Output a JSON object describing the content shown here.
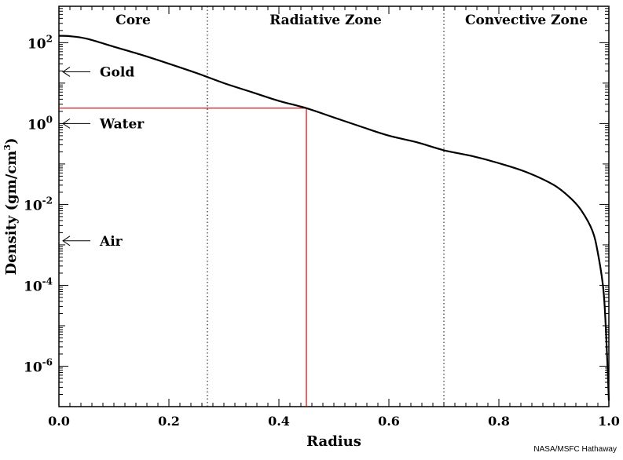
{
  "credit": "NASA/MSFC Hathaway",
  "chart_data": {
    "type": "line",
    "title": "",
    "xlabel": "Radius",
    "ylabel_parts": [
      "Density (gm/cm",
      "3",
      ")"
    ],
    "xlim": [
      0.0,
      1.0
    ],
    "ylim_log10": [
      -7.0,
      2.9
    ],
    "y_scale": "log",
    "x_ticks": [
      {
        "value": 0.0,
        "label": "0.0"
      },
      {
        "value": 0.2,
        "label": "0.2"
      },
      {
        "value": 0.4,
        "label": "0.4"
      },
      {
        "value": 0.6,
        "label": "0.6"
      },
      {
        "value": 0.8,
        "label": "0.8"
      },
      {
        "value": 1.0,
        "label": "1.0"
      }
    ],
    "y_ticks": [
      {
        "exp": 2,
        "base": "10",
        "power": "2"
      },
      {
        "exp": 0,
        "base": "10",
        "power": "0"
      },
      {
        "exp": -2,
        "base": "10",
        "power": "-2"
      },
      {
        "exp": -4,
        "base": "10",
        "power": "-4"
      },
      {
        "exp": -6,
        "base": "10",
        "power": "-6"
      }
    ],
    "zones": [
      {
        "name": "Core",
        "x_start": 0.0,
        "x_end": 0.27
      },
      {
        "name": "Radiative Zone",
        "x_start": 0.27,
        "x_end": 0.7
      },
      {
        "name": "Convective Zone",
        "x_start": 0.7,
        "x_end": 1.0
      }
    ],
    "zone_boundaries": [
      0.27,
      0.7
    ],
    "reference_markers": [
      {
        "label": "Gold",
        "log10_density": 1.28
      },
      {
        "label": "Water",
        "log10_density": 0.0
      },
      {
        "label": "Air",
        "log10_density": -2.9
      }
    ],
    "highlight_point": {
      "x": 0.45,
      "log10_y": 0.38
    },
    "series": [
      {
        "color": "#000000",
        "points": [
          [
            0.0,
            2.17
          ],
          [
            0.02,
            2.16
          ],
          [
            0.05,
            2.1
          ],
          [
            0.1,
            1.9
          ],
          [
            0.15,
            1.7
          ],
          [
            0.2,
            1.48
          ],
          [
            0.25,
            1.25
          ],
          [
            0.3,
            1.0
          ],
          [
            0.35,
            0.78
          ],
          [
            0.4,
            0.56
          ],
          [
            0.45,
            0.38
          ],
          [
            0.5,
            0.15
          ],
          [
            0.55,
            -0.08
          ],
          [
            0.6,
            -0.3
          ],
          [
            0.65,
            -0.46
          ],
          [
            0.7,
            -0.66
          ],
          [
            0.75,
            -0.8
          ],
          [
            0.8,
            -0.98
          ],
          [
            0.85,
            -1.2
          ],
          [
            0.9,
            -1.52
          ],
          [
            0.93,
            -1.84
          ],
          [
            0.95,
            -2.15
          ],
          [
            0.97,
            -2.65
          ],
          [
            0.98,
            -3.2
          ],
          [
            0.99,
            -4.1
          ],
          [
            0.995,
            -5.2
          ],
          [
            1.0,
            -6.85
          ]
        ]
      }
    ]
  }
}
